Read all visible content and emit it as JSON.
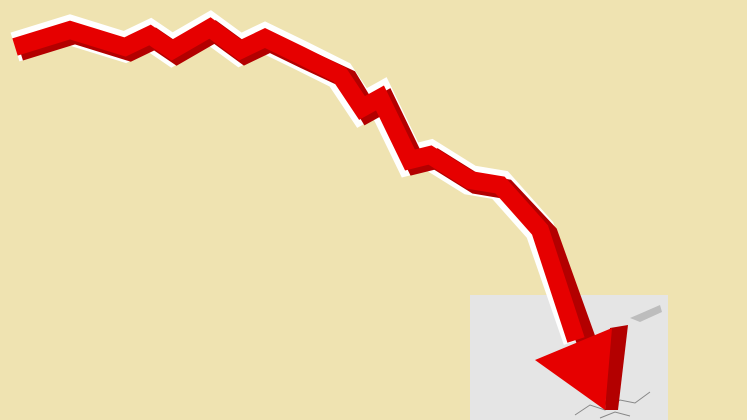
{
  "illustration": {
    "subject": "falling-red-arrow-icon",
    "colors": {
      "background": "#EFE3B1",
      "arrow": "#E60000",
      "arrow_shadow": "#B30000",
      "outline": "#FFFFFF",
      "floor_box": "#E5E5E5",
      "crack": "#888888"
    }
  }
}
